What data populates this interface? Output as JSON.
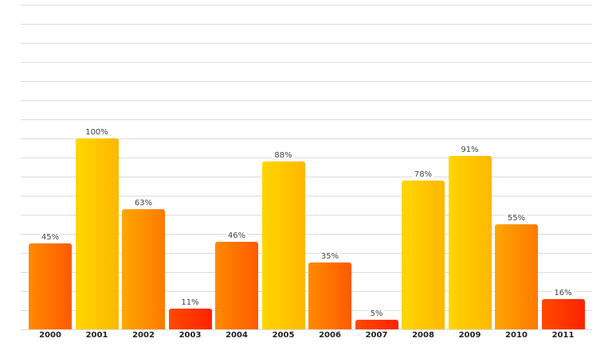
{
  "chart_data": {
    "type": "bar",
    "title": "",
    "xlabel": "",
    "ylabel": "",
    "categories": [
      "2000",
      "2001",
      "2002",
      "2003",
      "2004",
      "2005",
      "2006",
      "2007",
      "2008",
      "2009",
      "2010",
      "2011"
    ],
    "values": [
      45,
      100,
      63,
      11,
      46,
      88,
      35,
      5,
      78,
      91,
      55,
      16
    ],
    "value_labels": [
      "45%",
      "100%",
      "63%",
      "11%",
      "46%",
      "88%",
      "35%",
      "5%",
      "78%",
      "91%",
      "55%",
      "16%"
    ],
    "unit": "%",
    "ylim": [
      0,
      170
    ],
    "grid": true,
    "gridline_step": 10,
    "y_tick_labels_visible": false,
    "legend": null
  },
  "colors": {
    "high": [
      "#ffd600",
      "#ffb800"
    ],
    "mid": [
      "#ffa600",
      "#ff7a00"
    ],
    "low": [
      "#ff8a00",
      "#ff5a00"
    ],
    "lowest": [
      "#ff4a00",
      "#ff2200"
    ],
    "gridline": "#dcdcdc",
    "label_text": "#444444",
    "axis_text": "#222222"
  }
}
